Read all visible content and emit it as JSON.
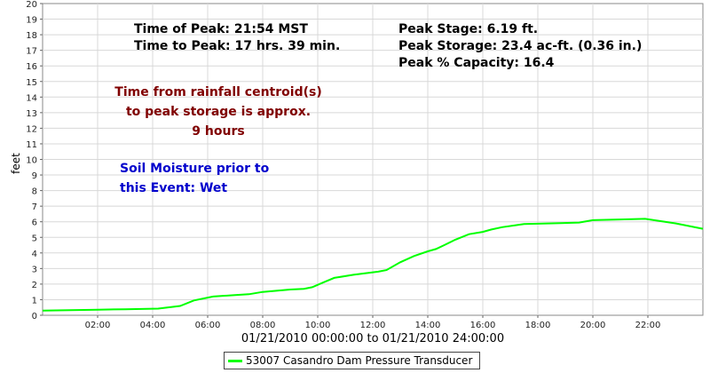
{
  "chart_data": {
    "type": "line",
    "ylabel": "feet",
    "xlabel": "01/21/2010 00:00:00 to 01/21/2010 24:00:00",
    "xlim_hours": [
      0,
      24
    ],
    "ylim": [
      0,
      20
    ],
    "y_ticks": [
      "0",
      "1",
      "2",
      "3",
      "4",
      "5",
      "6",
      "7",
      "8",
      "9",
      "10",
      "11",
      "12",
      "13",
      "14",
      "15",
      "16",
      "17",
      "18",
      "19",
      "20"
    ],
    "x_ticks": [
      {
        "hour": 2,
        "label": "02:00"
      },
      {
        "hour": 4,
        "label": "04:00"
      },
      {
        "hour": 6,
        "label": "06:00"
      },
      {
        "hour": 8,
        "label": "08:00"
      },
      {
        "hour": 10,
        "label": "10:00"
      },
      {
        "hour": 12,
        "label": "12:00"
      },
      {
        "hour": 14,
        "label": "14:00"
      },
      {
        "hour": 16,
        "label": "16:00"
      },
      {
        "hour": 18,
        "label": "18:00"
      },
      {
        "hour": 20,
        "label": "20:00"
      },
      {
        "hour": 22,
        "label": "22:00"
      }
    ],
    "series": [
      {
        "name": "53007 Casandro Dam Pressure Transducer",
        "color": "#00ff00",
        "x_hours": [
          0,
          1,
          2,
          3,
          4.2,
          5,
          5.5,
          6.2,
          7,
          7.5,
          8,
          9,
          9.5,
          9.8,
          10.2,
          10.6,
          11.3,
          12.2,
          12.5,
          13,
          13.5,
          14,
          14.3,
          14.6,
          15,
          15.5,
          16,
          16.3,
          16.7,
          17.5,
          18.5,
          19.5,
          20,
          21,
          21.9,
          23,
          24
        ],
        "values": [
          0.3,
          0.33,
          0.36,
          0.39,
          0.43,
          0.6,
          0.95,
          1.2,
          1.3,
          1.35,
          1.5,
          1.65,
          1.7,
          1.8,
          2.1,
          2.4,
          2.6,
          2.8,
          2.9,
          3.4,
          3.8,
          4.1,
          4.25,
          4.5,
          4.85,
          5.2,
          5.35,
          5.5,
          5.65,
          5.85,
          5.9,
          5.95,
          6.1,
          6.15,
          6.19,
          5.9,
          5.55
        ]
      }
    ],
    "annotations": [
      {
        "text": "Time of Peak: 21:54 MST",
        "color": "#000000"
      },
      {
        "text": "Time to Peak: 17 hrs. 39 min.",
        "color": "#000000"
      },
      {
        "text": "Peak Stage: 6.19 ft.",
        "color": "#000000"
      },
      {
        "text": "Peak Storage: 23.4 ac-ft. (0.36 in.)",
        "color": "#000000"
      },
      {
        "text": "Peak % Capacity: 16.4",
        "color": "#000000"
      },
      {
        "text": "Time from rainfall centroid(s)",
        "color": "#800000"
      },
      {
        "text": "to peak storage is approx.",
        "color": "#800000"
      },
      {
        "text": "9 hours",
        "color": "#800000"
      },
      {
        "text": "Soil Moisture prior to",
        "color": "#0000cc"
      },
      {
        "text": "this Event: Wet",
        "color": "#0000cc"
      }
    ]
  }
}
